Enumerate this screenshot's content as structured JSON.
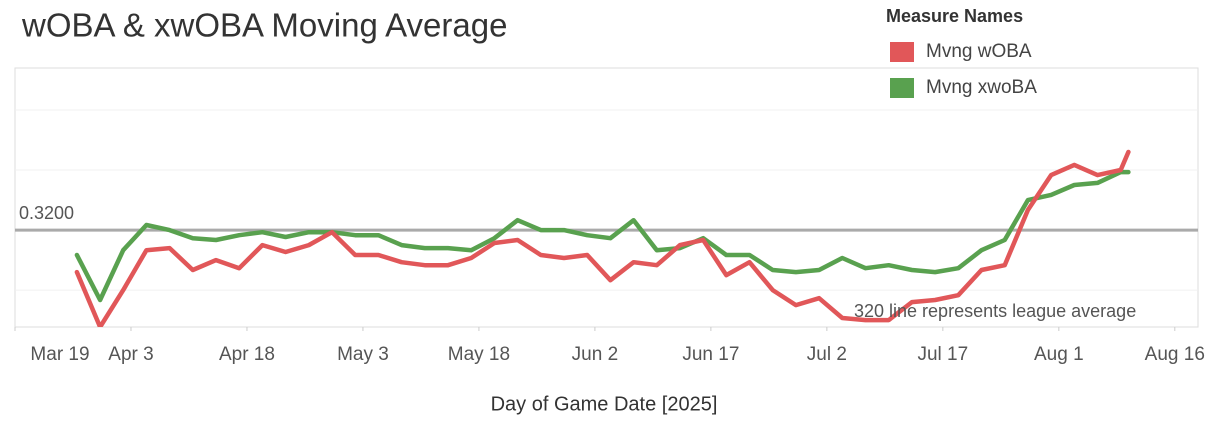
{
  "chart_data": {
    "type": "line",
    "title": "wOBA & xwOBA Moving Average",
    "x_label": "Day of Game Date [2025]",
    "legend_title": "Measure Names",
    "legend": "top-right",
    "annotation": "320 line represents league average",
    "reference_line": {
      "value": 0.32,
      "label": "0.3200"
    },
    "x": [
      "2025-03-27",
      "2025-03-30",
      "2025-04-02",
      "2025-04-05",
      "2025-04-08",
      "2025-04-11",
      "2025-04-14",
      "2025-04-17",
      "2025-04-20",
      "2025-04-23",
      "2025-04-26",
      "2025-04-29",
      "2025-05-02",
      "2025-05-05",
      "2025-05-08",
      "2025-05-11",
      "2025-05-14",
      "2025-05-17",
      "2025-05-20",
      "2025-05-23",
      "2025-05-26",
      "2025-05-29",
      "2025-06-01",
      "2025-06-04",
      "2025-06-07",
      "2025-06-10",
      "2025-06-13",
      "2025-06-16",
      "2025-06-19",
      "2025-06-22",
      "2025-06-25",
      "2025-06-28",
      "2025-07-01",
      "2025-07-04",
      "2025-07-07",
      "2025-07-10",
      "2025-07-13",
      "2025-07-16",
      "2025-07-19",
      "2025-07-22",
      "2025-07-25",
      "2025-07-28",
      "2025-07-31",
      "2025-08-03",
      "2025-08-06",
      "2025-08-09",
      "2025-08-10"
    ],
    "series": [
      {
        "name": "Mvng wOBA",
        "color": "#e15759",
        "values": [
          0.306,
          0.2877,
          0.3,
          0.3133,
          0.314,
          0.3067,
          0.31,
          0.3073,
          0.315,
          0.3127,
          0.315,
          0.3193,
          0.3117,
          0.3117,
          0.3093,
          0.3083,
          0.3083,
          0.3107,
          0.3157,
          0.3167,
          0.3117,
          0.3107,
          0.3117,
          0.3033,
          0.3093,
          0.3083,
          0.315,
          0.3167,
          0.305,
          0.3093,
          0.3,
          0.295,
          0.2973,
          0.2907,
          0.29,
          0.29,
          0.296,
          0.2967,
          0.2983,
          0.3067,
          0.3083,
          0.3267,
          0.3383,
          0.3417,
          0.3383,
          0.34,
          0.346
        ]
      },
      {
        "name": "Mvng xwoBA",
        "color": "#59a14f",
        "values": [
          0.3117,
          0.2967,
          0.3133,
          0.3217,
          0.32,
          0.3173,
          0.3167,
          0.3183,
          0.3193,
          0.3177,
          0.3193,
          0.3193,
          0.3183,
          0.3183,
          0.315,
          0.314,
          0.314,
          0.3133,
          0.3173,
          0.3233,
          0.32,
          0.32,
          0.3183,
          0.3173,
          0.3233,
          0.3133,
          0.314,
          0.3173,
          0.3117,
          0.3117,
          0.3067,
          0.306,
          0.3067,
          0.3107,
          0.3073,
          0.3083,
          0.3067,
          0.306,
          0.3073,
          0.3133,
          0.3167,
          0.33,
          0.3317,
          0.335,
          0.3357,
          0.3393,
          0.3393
        ]
      }
    ],
    "xlim": [
      "2025-03-19",
      "2025-08-19"
    ],
    "xticks": [
      {
        "value": "2025-03-19",
        "label": "Mar 19"
      },
      {
        "value": "2025-04-03",
        "label": "Apr 3"
      },
      {
        "value": "2025-04-18",
        "label": "Apr 18"
      },
      {
        "value": "2025-05-03",
        "label": "May 3"
      },
      {
        "value": "2025-05-18",
        "label": "May 18"
      },
      {
        "value": "2025-06-02",
        "label": "Jun 2"
      },
      {
        "value": "2025-06-17",
        "label": "Jun 17"
      },
      {
        "value": "2025-07-02",
        "label": "Jul 2"
      },
      {
        "value": "2025-07-17",
        "label": "Jul 17"
      },
      {
        "value": "2025-08-01",
        "label": "Aug 1"
      },
      {
        "value": "2025-08-16",
        "label": "Aug 16"
      }
    ],
    "ylim": [
      0.2877,
      0.374
    ],
    "yticks": [
      0.3,
      0.32,
      0.34,
      0.36
    ],
    "grid": true
  }
}
